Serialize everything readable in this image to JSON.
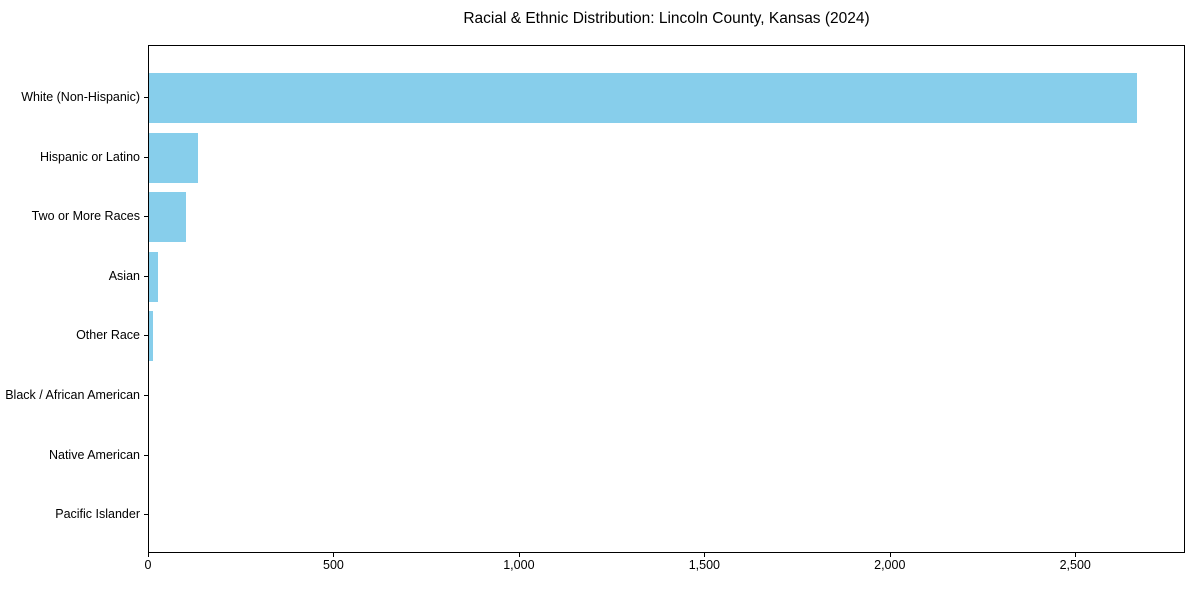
{
  "chart_data": {
    "type": "bar",
    "orientation": "horizontal",
    "title": "Racial & Ethnic Distribution: Lincoln County, Kansas (2024)",
    "categories": [
      "White (Non-Hispanic)",
      "Hispanic or Latino",
      "Two or More Races",
      "Asian",
      "Other Race",
      "Black / African American",
      "Native American",
      "Pacific Islander"
    ],
    "values": [
      2663,
      132,
      100,
      24,
      10,
      0,
      0,
      0
    ],
    "title_position": "top-center",
    "xlabel": "",
    "ylabel": "",
    "xlim": [
      0,
      2796
    ],
    "xticks": {
      "values": [
        0,
        500,
        1000,
        1500,
        2000,
        2500
      ],
      "labels": [
        "0",
        "500",
        "1,000",
        "1,500",
        "2,000",
        "2,500"
      ]
    },
    "grid": false,
    "legend": "none",
    "bar_color": "#87CEEB",
    "axis_color": "#000000",
    "background_color": "#ffffff"
  }
}
